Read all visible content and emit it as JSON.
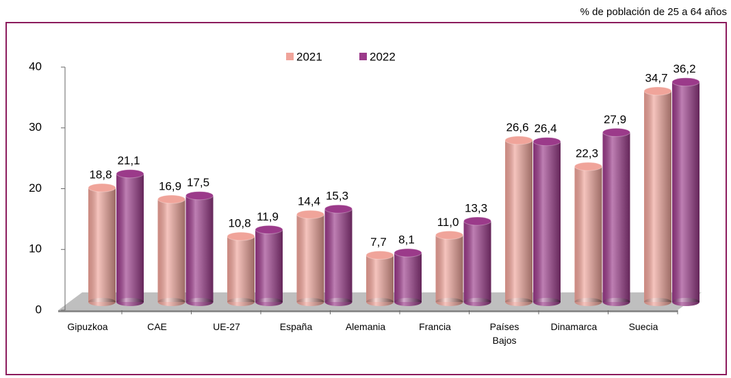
{
  "chart_data": {
    "type": "bar",
    "subtitle": "% de población de 25 a 64 años",
    "categories": [
      "Gipuzkoa",
      "CAE",
      "UE-27",
      "España",
      "Alemania",
      "Francia",
      "Países Bajos",
      "Dinamarca",
      "Suecia"
    ],
    "series": [
      {
        "name": "2021",
        "color": "#f0a49a",
        "values": [
          18.8,
          16.9,
          10.8,
          14.4,
          7.7,
          11.0,
          26.6,
          22.3,
          34.7
        ],
        "value_labels": [
          "18,8",
          "16,9",
          "10,8",
          "14,4",
          "7,7",
          "11,0",
          "26,6",
          "22,3",
          "34,7"
        ]
      },
      {
        "name": "2022",
        "color": "#9b3a8a",
        "values": [
          21.1,
          17.5,
          11.9,
          15.3,
          8.1,
          13.3,
          26.4,
          27.9,
          36.2
        ],
        "value_labels": [
          "21,1",
          "17,5",
          "11,9",
          "15,3",
          "8,1",
          "13,3",
          "26,4",
          "27,9",
          "36,2"
        ]
      }
    ],
    "ylim": [
      0,
      40
    ],
    "yticks": [
      0,
      10,
      20,
      30,
      40
    ],
    "legend": "top",
    "frame_color": "#8b1a5c"
  }
}
